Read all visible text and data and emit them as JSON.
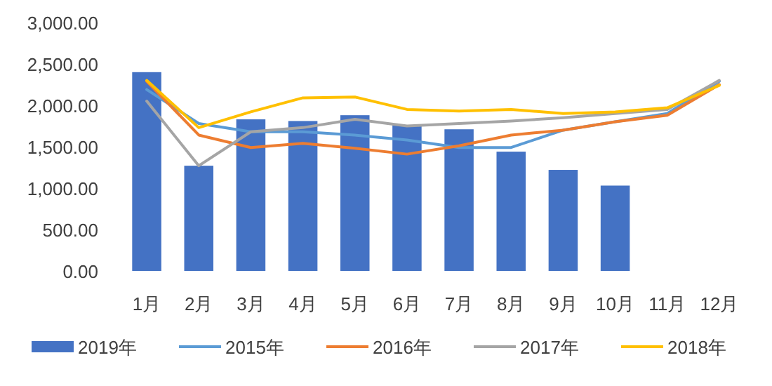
{
  "chart_data": {
    "type": "bar",
    "categories": [
      "1月",
      "2月",
      "3月",
      "4月",
      "5月",
      "6月",
      "7月",
      "8月",
      "9月",
      "10月",
      "11月",
      "12月"
    ],
    "series": [
      {
        "name": "2019年",
        "color": "#4472c4",
        "values": [
          2400,
          1270,
          1830,
          1810,
          1880,
          1760,
          1710,
          1440,
          1220,
          1030,
          null,
          null
        ]
      },
      {
        "name": "2015年",
        "type": "line",
        "color": "#5b9bd5",
        "values": [
          2190,
          1780,
          1680,
          1680,
          1640,
          1580,
          1490,
          1490,
          1700,
          1800,
          1900,
          2290
        ]
      },
      {
        "name": "2016年",
        "type": "line",
        "color": "#ed7d31",
        "values": [
          2290,
          1640,
          1490,
          1540,
          1480,
          1410,
          1510,
          1640,
          1700,
          1800,
          1880,
          2250
        ]
      },
      {
        "name": "2017年",
        "type": "line",
        "color": "#a5a5a5",
        "values": [
          2050,
          1270,
          1680,
          1730,
          1830,
          1750,
          1780,
          1810,
          1850,
          1900,
          1950,
          2300
        ]
      },
      {
        "name": "2018年",
        "type": "line",
        "color": "#ffc000",
        "values": [
          2300,
          1730,
          1920,
          2090,
          2100,
          1950,
          1930,
          1950,
          1900,
          1920,
          1970,
          2240
        ]
      }
    ],
    "ylim": [
      0,
      3000
    ],
    "yticks": [
      {
        "value": 0,
        "label": "0.00"
      },
      {
        "value": 500,
        "label": "500.00"
      },
      {
        "value": 1000,
        "label": "1,000.00"
      },
      {
        "value": 1500,
        "label": "1,500.00"
      },
      {
        "value": 2000,
        "label": "2,000.00"
      },
      {
        "value": 2500,
        "label": "2,500.00"
      },
      {
        "value": 3000,
        "label": "3,000.00"
      }
    ],
    "grid": false,
    "legend": "bottom",
    "marker": "none",
    "line_style": "solid"
  }
}
